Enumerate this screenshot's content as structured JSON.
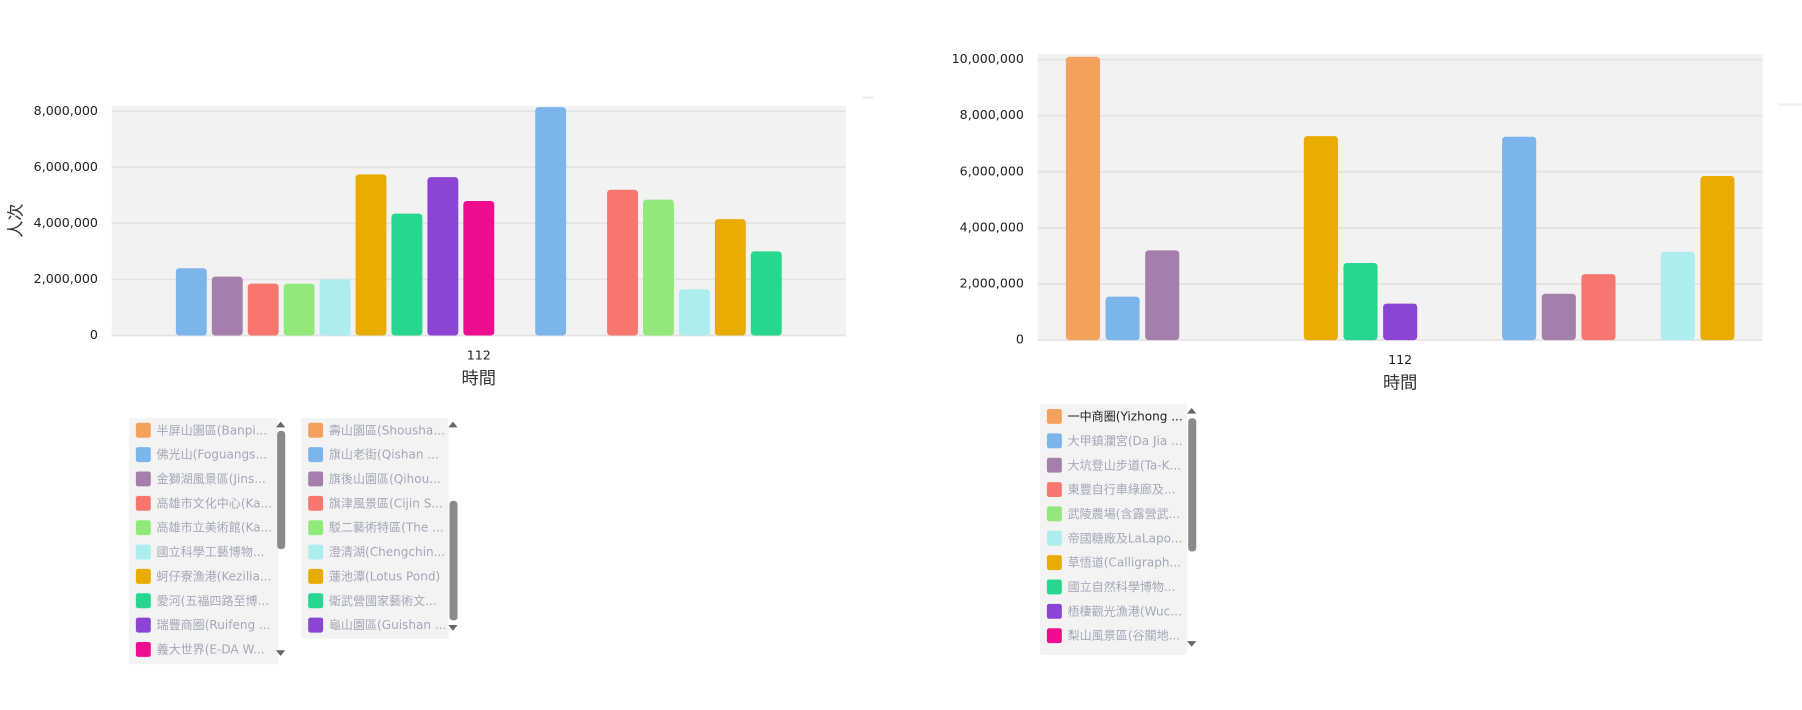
{
  "chart_data": [
    {
      "type": "bar",
      "ylabel": "人次",
      "xlabel": "時間",
      "categories": [
        "112"
      ],
      "ylim": [
        0,
        8200000
      ],
      "yticks": [
        0,
        {
          "value": 2000000,
          "label": "2,000,000"
        },
        {
          "value": 4000000,
          "label": "4,000,000"
        },
        {
          "value": 6000000,
          "label": "6,000,000"
        },
        {
          "value": 8000000,
          "label": "8,000,000"
        }
      ],
      "grid": true,
      "series": [
        {
          "name": "半屏山園區(Banpi...",
          "color": "#f4a15d",
          "values": [
            null
          ]
        },
        {
          "name": "佛光山(Foguangs...",
          "color": "#7cb4ec",
          "values": [
            2400000
          ]
        },
        {
          "name": "金獅湖風景區(Jins...",
          "color": "#a57fab",
          "values": [
            2100000
          ]
        },
        {
          "name": "高雄市文化中心(Ka...",
          "color": "#f7776f",
          "values": [
            1850000
          ]
        },
        {
          "name": "高雄市立美術館(Ka...",
          "color": "#92e97b",
          "values": [
            1850000
          ]
        },
        {
          "name": "國立科學工藝博物...",
          "color": "#aeedee",
          "values": [
            2000000
          ]
        },
        {
          "name": "蚵仔寮漁港(Kezilia...",
          "color": "#e8ad00",
          "values": [
            5750000
          ]
        },
        {
          "name": "愛河(五福四路至博...",
          "color": "#27d68f",
          "values": [
            4350000
          ]
        },
        {
          "name": "瑞豐商圈(Ruifeng ...",
          "color": "#8c44d4",
          "values": [
            5650000
          ]
        },
        {
          "name": "義大世界(E-DA W...",
          "color": "#ee0d8e",
          "values": [
            4800000
          ]
        },
        {
          "name": "壽山園區(Shousha...",
          "color": "#f4a15d",
          "values": [
            null
          ]
        },
        {
          "name": "旗山老街(Qishan ...",
          "color": "#7cb4ec",
          "values": [
            8150000
          ]
        },
        {
          "name": "旗後山園區(Qihou...",
          "color": "#a57fab",
          "values": [
            null
          ]
        },
        {
          "name": "旗津風景區(Cijin S...",
          "color": "#f7776f",
          "values": [
            5200000
          ]
        },
        {
          "name": "駁二藝術特區(The ...",
          "color": "#92e97b",
          "values": [
            4850000
          ]
        },
        {
          "name": "澄清湖(Chengchin...",
          "color": "#aeedee",
          "values": [
            1650000
          ]
        },
        {
          "name": "蓮池潭(Lotus Pond)",
          "color": "#e8ad00",
          "values": [
            4150000
          ]
        },
        {
          "name": "衛武營國家藝術文...",
          "color": "#27d68f",
          "values": [
            3000000
          ]
        },
        {
          "name": "龜山園區(Guishan ...",
          "color": "#8c44d4",
          "values": [
            null
          ]
        }
      ]
    },
    {
      "type": "bar",
      "xlabel": "時間",
      "categories": [
        "112"
      ],
      "ylim": [
        0,
        10200000
      ],
      "yticks": [
        0,
        {
          "value": 2000000,
          "label": "2,000,000"
        },
        {
          "value": 4000000,
          "label": "4,000,000"
        },
        {
          "value": 6000000,
          "label": "6,000,000"
        },
        {
          "value": 8000000,
          "label": "8,000,000"
        },
        {
          "value": 10000000,
          "label": "10,000,000"
        }
      ],
      "grid": true,
      "series": [
        {
          "name": "一中商圈(Yizhong ...",
          "color": "#f4a15d",
          "values": [
            10100000
          ]
        },
        {
          "name": "大甲鎮瀾宮(Da Jia ...",
          "color": "#7cb4ec",
          "values": [
            1550000
          ]
        },
        {
          "name": "大坑登山步道(Ta-K...",
          "color": "#a57fab",
          "values": [
            3200000
          ]
        },
        {
          "name": "東豐自行車綠廊及...",
          "color": "#f7776f",
          "values": [
            null
          ]
        },
        {
          "name": "武陵農場(含露營武...",
          "color": "#92e97b",
          "values": [
            null
          ]
        },
        {
          "name": "帝國糖廠及LaLapo...",
          "color": "#aeedee",
          "values": [
            null
          ]
        },
        {
          "name": "草悟道(Calligraph...",
          "color": "#e8ad00",
          "values": [
            7270000
          ]
        },
        {
          "name": "國立自然科學博物...",
          "color": "#27d68f",
          "values": [
            2750000
          ]
        },
        {
          "name": "梧棲觀光漁港(Wuc...",
          "color": "#8c44d4",
          "values": [
            1300000
          ]
        },
        {
          "name": "梨山風景區(谷關地...",
          "color": "#ee0d8e",
          "values": [
            null
          ]
        },
        {
          "color": "#f4a15d",
          "values": [
            null
          ]
        },
        {
          "color": "#7cb4ec",
          "values": [
            7250000
          ]
        },
        {
          "color": "#a57fab",
          "values": [
            1650000
          ]
        },
        {
          "color": "#f7776f",
          "values": [
            2350000
          ]
        },
        {
          "color": "#92e97b",
          "values": [
            null
          ]
        },
        {
          "color": "#aeedee",
          "values": [
            3150000
          ]
        },
        {
          "color": "#e8ad00",
          "values": [
            5850000
          ]
        }
      ]
    }
  ]
}
